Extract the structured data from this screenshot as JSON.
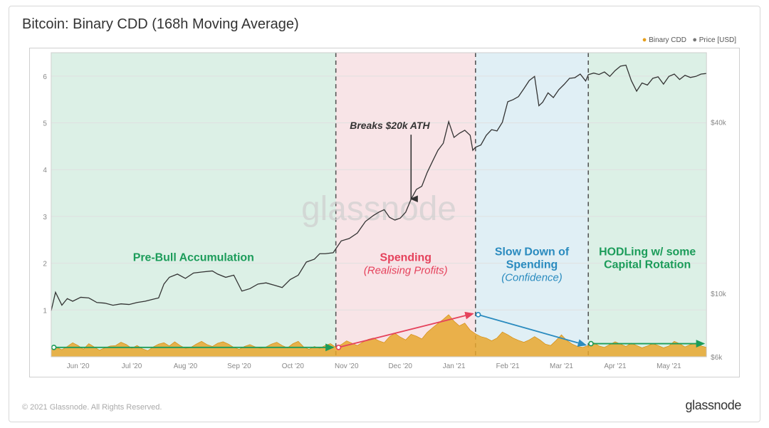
{
  "title": "Bitcoin: Binary CDD (168h Moving Average)",
  "copyright": "© 2021 Glassnode. All Rights Reserved.",
  "brand": "glassnode",
  "watermark": "glassnode",
  "legend": {
    "series_a": "Binary CDD",
    "series_b": "Price [USD]"
  },
  "colors": {
    "line": "#333333",
    "area": "#e8a72e",
    "area_stroke": "#d48e14",
    "bg_green": "#bfe4d1",
    "bg_pink": "#f2cdd3",
    "bg_blue": "#c7e2ed",
    "grid": "#e0e0e0",
    "dash": "#555555",
    "arrow_green": "#1c9c5a",
    "arrow_red": "#e5425c",
    "arrow_blue": "#2a8bbf",
    "label_green": "#1c9c5a",
    "label_red": "#e5425c",
    "label_blue": "#2a8bbf",
    "label_dark": "#333333"
  },
  "chart": {
    "type": "composite-line-area",
    "x_months": [
      "Jun '20",
      "Jul '20",
      "Aug '20",
      "Sep '20",
      "Oct '20",
      "Nov '20",
      "Dec '20",
      "Jan '21",
      "Feb '21",
      "Mar '21",
      "Apr '21",
      "May '21"
    ],
    "x_domain_months": 12.2,
    "y_left": {
      "min": 0,
      "max": 6.5,
      "ticks": [
        1,
        2,
        3,
        4,
        5,
        6
      ]
    },
    "y_right": {
      "min_log": 6000,
      "max_log": 70000,
      "ticks": [
        {
          "v": 6000,
          "label": "$6k"
        },
        {
          "v": 10000,
          "label": "$10k"
        },
        {
          "v": 40000,
          "label": "$40k"
        }
      ]
    },
    "phase_boundaries_month": [
      5.3,
      7.9,
      10.0
    ],
    "phases": [
      {
        "from": 0.0,
        "to": 5.3,
        "bg": "bg_green",
        "label": "Pre-Bull Accumulation",
        "sub": "",
        "color": "label_green"
      },
      {
        "from": 5.3,
        "to": 7.9,
        "bg": "bg_pink",
        "label": "Spending",
        "sub": "(Realising Profits)",
        "color": "label_red"
      },
      {
        "from": 7.9,
        "to": 10.0,
        "bg": "bg_blue",
        "label": "Slow Down of Spending",
        "two_line": [
          "Slow Down of",
          "Spending"
        ],
        "sub": "(Confidence)",
        "color": "label_blue"
      },
      {
        "from": 10.0,
        "to": 12.2,
        "bg": "bg_green",
        "label": "HODLing w/ some Capital Rotation",
        "two_line": [
          "HODLing w/ some",
          "Capital Rotation"
        ],
        "sub": "",
        "color": "label_green"
      }
    ],
    "ath_annotation": {
      "label": "Breaks $20k ATH",
      "x_month": 6.7
    },
    "price_series_monthly": [
      [
        0.0,
        8700
      ],
      [
        0.08,
        10100
      ],
      [
        0.2,
        9100
      ],
      [
        0.3,
        9600
      ],
      [
        0.4,
        9400
      ],
      [
        0.55,
        9700
      ],
      [
        0.7,
        9650
      ],
      [
        0.85,
        9300
      ],
      [
        1.0,
        9250
      ],
      [
        1.15,
        9100
      ],
      [
        1.3,
        9200
      ],
      [
        1.45,
        9150
      ],
      [
        1.6,
        9300
      ],
      [
        1.75,
        9400
      ],
      [
        1.9,
        9550
      ],
      [
        2.0,
        9650
      ],
      [
        2.1,
        10800
      ],
      [
        2.2,
        11400
      ],
      [
        2.35,
        11700
      ],
      [
        2.5,
        11300
      ],
      [
        2.65,
        11800
      ],
      [
        2.8,
        11900
      ],
      [
        3.0,
        12000
      ],
      [
        3.1,
        11700
      ],
      [
        3.25,
        11400
      ],
      [
        3.4,
        11600
      ],
      [
        3.55,
        10200
      ],
      [
        3.7,
        10400
      ],
      [
        3.85,
        10800
      ],
      [
        4.0,
        10900
      ],
      [
        4.15,
        10700
      ],
      [
        4.3,
        10500
      ],
      [
        4.45,
        11200
      ],
      [
        4.6,
        11600
      ],
      [
        4.75,
        12900
      ],
      [
        4.9,
        13200
      ],
      [
        5.0,
        13800
      ],
      [
        5.1,
        13800
      ],
      [
        5.25,
        13900
      ],
      [
        5.4,
        15300
      ],
      [
        5.55,
        15600
      ],
      [
        5.7,
        16300
      ],
      [
        5.85,
        17900
      ],
      [
        6.0,
        18800
      ],
      [
        6.1,
        19300
      ],
      [
        6.2,
        19700
      ],
      [
        6.3,
        18500
      ],
      [
        6.4,
        18100
      ],
      [
        6.5,
        18400
      ],
      [
        6.6,
        19300
      ],
      [
        6.7,
        21400
      ],
      [
        6.8,
        23200
      ],
      [
        6.9,
        23800
      ],
      [
        7.0,
        26600
      ],
      [
        7.1,
        29100
      ],
      [
        7.2,
        31800
      ],
      [
        7.3,
        33700
      ],
      [
        7.4,
        40100
      ],
      [
        7.5,
        35300
      ],
      [
        7.6,
        36500
      ],
      [
        7.7,
        37400
      ],
      [
        7.8,
        35900
      ],
      [
        7.85,
        31800
      ],
      [
        7.9,
        32600
      ],
      [
        8.0,
        33200
      ],
      [
        8.1,
        35900
      ],
      [
        8.2,
        37600
      ],
      [
        8.3,
        37200
      ],
      [
        8.4,
        39900
      ],
      [
        8.5,
        47100
      ],
      [
        8.6,
        47900
      ],
      [
        8.7,
        49100
      ],
      [
        8.8,
        52300
      ],
      [
        8.9,
        55900
      ],
      [
        9.0,
        57800
      ],
      [
        9.08,
        45600
      ],
      [
        9.15,
        46900
      ],
      [
        9.25,
        50600
      ],
      [
        9.35,
        48700
      ],
      [
        9.45,
        51900
      ],
      [
        9.55,
        54200
      ],
      [
        9.65,
        56900
      ],
      [
        9.75,
        57200
      ],
      [
        9.85,
        58900
      ],
      [
        9.95,
        55700
      ],
      [
        10.0,
        58600
      ],
      [
        10.1,
        59400
      ],
      [
        10.2,
        58700
      ],
      [
        10.3,
        59900
      ],
      [
        10.4,
        57800
      ],
      [
        10.5,
        60600
      ],
      [
        10.6,
        62800
      ],
      [
        10.7,
        63300
      ],
      [
        10.8,
        55900
      ],
      [
        10.9,
        51300
      ],
      [
        11.0,
        54800
      ],
      [
        11.1,
        53900
      ],
      [
        11.2,
        56900
      ],
      [
        11.3,
        57600
      ],
      [
        11.4,
        54300
      ],
      [
        11.5,
        57800
      ],
      [
        11.6,
        58900
      ],
      [
        11.7,
        56400
      ],
      [
        11.8,
        58300
      ],
      [
        11.9,
        57300
      ],
      [
        12.0,
        57800
      ],
      [
        12.1,
        58900
      ],
      [
        12.2,
        59200
      ]
    ],
    "cdd_series_monthly": [
      [
        0.0,
        0.19
      ],
      [
        0.1,
        0.2
      ],
      [
        0.2,
        0.15
      ],
      [
        0.3,
        0.22
      ],
      [
        0.4,
        0.3
      ],
      [
        0.5,
        0.24
      ],
      [
        0.6,
        0.16
      ],
      [
        0.7,
        0.28
      ],
      [
        0.8,
        0.21
      ],
      [
        0.9,
        0.14
      ],
      [
        1.0,
        0.19
      ],
      [
        1.1,
        0.23
      ],
      [
        1.2,
        0.24
      ],
      [
        1.3,
        0.31
      ],
      [
        1.4,
        0.26
      ],
      [
        1.5,
        0.18
      ],
      [
        1.6,
        0.24
      ],
      [
        1.7,
        0.17
      ],
      [
        1.8,
        0.13
      ],
      [
        1.9,
        0.21
      ],
      [
        2.0,
        0.27
      ],
      [
        2.1,
        0.3
      ],
      [
        2.2,
        0.23
      ],
      [
        2.3,
        0.32
      ],
      [
        2.4,
        0.24
      ],
      [
        2.5,
        0.18
      ],
      [
        2.6,
        0.2
      ],
      [
        2.7,
        0.27
      ],
      [
        2.8,
        0.33
      ],
      [
        2.9,
        0.26
      ],
      [
        3.0,
        0.22
      ],
      [
        3.1,
        0.29
      ],
      [
        3.2,
        0.32
      ],
      [
        3.3,
        0.27
      ],
      [
        3.4,
        0.2
      ],
      [
        3.5,
        0.16
      ],
      [
        3.6,
        0.22
      ],
      [
        3.7,
        0.26
      ],
      [
        3.8,
        0.21
      ],
      [
        3.9,
        0.18
      ],
      [
        4.0,
        0.21
      ],
      [
        4.1,
        0.27
      ],
      [
        4.2,
        0.31
      ],
      [
        4.3,
        0.24
      ],
      [
        4.4,
        0.19
      ],
      [
        4.5,
        0.28
      ],
      [
        4.6,
        0.33
      ],
      [
        4.7,
        0.21
      ],
      [
        4.8,
        0.16
      ],
      [
        4.9,
        0.22
      ],
      [
        5.0,
        0.18
      ],
      [
        5.1,
        0.24
      ],
      [
        5.2,
        0.28
      ],
      [
        5.3,
        0.2
      ],
      [
        5.4,
        0.26
      ],
      [
        5.5,
        0.34
      ],
      [
        5.6,
        0.29
      ],
      [
        5.7,
        0.24
      ],
      [
        5.8,
        0.31
      ],
      [
        5.9,
        0.37
      ],
      [
        6.0,
        0.4
      ],
      [
        6.1,
        0.34
      ],
      [
        6.2,
        0.3
      ],
      [
        6.3,
        0.43
      ],
      [
        6.4,
        0.5
      ],
      [
        6.5,
        0.42
      ],
      [
        6.6,
        0.36
      ],
      [
        6.7,
        0.48
      ],
      [
        6.8,
        0.44
      ],
      [
        6.9,
        0.38
      ],
      [
        7.0,
        0.52
      ],
      [
        7.1,
        0.62
      ],
      [
        7.2,
        0.71
      ],
      [
        7.3,
        0.8
      ],
      [
        7.4,
        0.9
      ],
      [
        7.5,
        0.76
      ],
      [
        7.6,
        0.66
      ],
      [
        7.7,
        0.72
      ],
      [
        7.8,
        0.57
      ],
      [
        7.9,
        0.49
      ],
      [
        8.0,
        0.43
      ],
      [
        8.1,
        0.4
      ],
      [
        8.2,
        0.34
      ],
      [
        8.3,
        0.4
      ],
      [
        8.4,
        0.53
      ],
      [
        8.5,
        0.47
      ],
      [
        8.6,
        0.4
      ],
      [
        8.7,
        0.35
      ],
      [
        8.8,
        0.31
      ],
      [
        8.9,
        0.36
      ],
      [
        9.0,
        0.43
      ],
      [
        9.1,
        0.36
      ],
      [
        9.2,
        0.27
      ],
      [
        9.3,
        0.24
      ],
      [
        9.4,
        0.35
      ],
      [
        9.5,
        0.47
      ],
      [
        9.6,
        0.35
      ],
      [
        9.7,
        0.27
      ],
      [
        9.8,
        0.22
      ],
      [
        9.9,
        0.2
      ],
      [
        10.0,
        0.24
      ],
      [
        10.1,
        0.3
      ],
      [
        10.2,
        0.23
      ],
      [
        10.3,
        0.2
      ],
      [
        10.4,
        0.26
      ],
      [
        10.5,
        0.32
      ],
      [
        10.6,
        0.27
      ],
      [
        10.7,
        0.22
      ],
      [
        10.8,
        0.29
      ],
      [
        10.9,
        0.24
      ],
      [
        11.0,
        0.19
      ],
      [
        11.1,
        0.23
      ],
      [
        11.2,
        0.28
      ],
      [
        11.3,
        0.24
      ],
      [
        11.4,
        0.19
      ],
      [
        11.5,
        0.23
      ],
      [
        11.6,
        0.33
      ],
      [
        11.7,
        0.28
      ],
      [
        11.8,
        0.21
      ],
      [
        11.9,
        0.26
      ],
      [
        12.0,
        0.29
      ],
      [
        12.1,
        0.23
      ],
      [
        12.2,
        0.2
      ]
    ]
  }
}
